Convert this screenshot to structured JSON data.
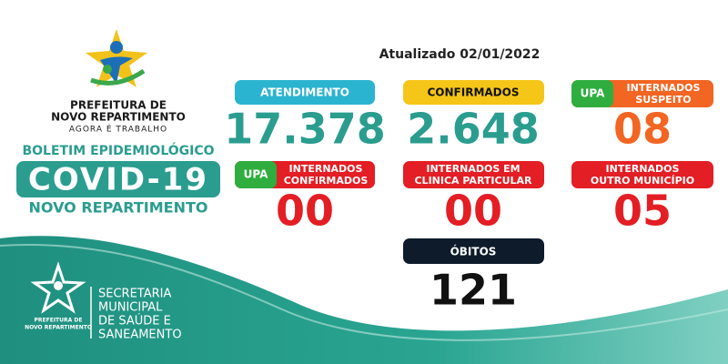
{
  "header": {
    "org_line1": "PREFEITURA DE",
    "org_line2": "NOVO REPARTIMENTO",
    "slogan": "AGORA É TRABALHO",
    "bulletin": "BOLETIM EPIDEMIOLÓGICO",
    "title": "COVID-19",
    "subtitle": "NOVO REPARTIMENTO",
    "updated": "Atualizado 02/01/2022"
  },
  "cards": [
    {
      "label": "ATENDIMENTO",
      "value": "17.378"
    },
    {
      "label": "CONFIRMADOS",
      "value": "2.648"
    },
    {
      "tag": "UPA",
      "label": [
        "INTERNADOS",
        "SUSPEITO"
      ],
      "value": "08"
    },
    {
      "tag": "UPA",
      "label": [
        "INTERNADOS",
        "CONFIRMADOS"
      ],
      "value": "00"
    },
    {
      "label": [
        "INTERNADOS EM",
        "CLINICA PARTICULAR"
      ],
      "value": "00"
    },
    {
      "label": [
        "INTERNADOS",
        "OUTRO MUNICÍPIO"
      ],
      "value": "05"
    },
    {
      "label": "ÓBITOS",
      "value": "121"
    }
  ],
  "footer": {
    "logo_line1": "PREFEITURA DE",
    "logo_line2": "NOVO REPARTIMENTO",
    "dept": [
      "SECRETARIA",
      "MUNICIPAL",
      "DE SAÚDE E",
      "SANEAMENTO"
    ]
  }
}
